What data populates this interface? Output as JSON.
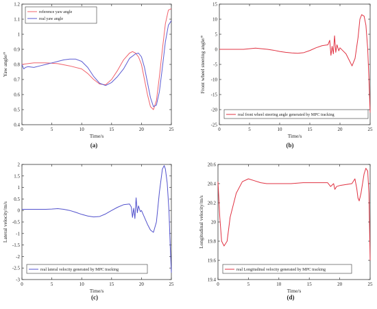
{
  "chart_data": [
    {
      "type": "line",
      "panel_label": "(a)",
      "xlabel": "Time/s",
      "ylabel": "Yaw angle/°",
      "xlim": [
        0,
        25
      ],
      "ylim": [
        0.4,
        1.2
      ],
      "xticks": [
        "0",
        "5",
        "10",
        "15",
        "20",
        "25"
      ],
      "yticks": [
        "0.4",
        "0.5",
        "0.6",
        "0.7",
        "0.8",
        "0.9",
        "1",
        "1.1",
        "1.2"
      ],
      "legend_position": "top-left",
      "series": [
        {
          "name": "reference yaw angle",
          "color": "#f0606a",
          "x": [
            0,
            2,
            4,
            6,
            8,
            10,
            11,
            12,
            13,
            14,
            15,
            16,
            17,
            18,
            18.5,
            19,
            19.5,
            20,
            20.5,
            21,
            21.5,
            22,
            22.5,
            23,
            23.5,
            24,
            24.5,
            25
          ],
          "y": [
            0.8,
            0.81,
            0.81,
            0.805,
            0.79,
            0.77,
            0.74,
            0.7,
            0.67,
            0.665,
            0.7,
            0.76,
            0.83,
            0.875,
            0.885,
            0.875,
            0.85,
            0.8,
            0.7,
            0.6,
            0.52,
            0.5,
            0.56,
            0.72,
            0.9,
            1.07,
            1.16,
            1.17
          ]
        },
        {
          "name": "real yaw angle",
          "color": "#5a5ad2",
          "x": [
            0,
            0.3,
            0.6,
            1,
            2,
            3,
            4,
            5,
            6,
            7,
            8,
            9,
            10,
            11,
            12,
            13,
            14,
            15,
            16,
            17,
            18,
            19,
            19.5,
            20,
            20.5,
            21,
            21.5,
            22,
            22.5,
            23,
            23.5,
            24,
            24.5,
            25
          ],
          "y": [
            0.8,
            0.77,
            0.78,
            0.785,
            0.78,
            0.79,
            0.8,
            0.81,
            0.82,
            0.83,
            0.835,
            0.835,
            0.82,
            0.78,
            0.72,
            0.675,
            0.66,
            0.68,
            0.72,
            0.77,
            0.84,
            0.87,
            0.875,
            0.85,
            0.78,
            0.68,
            0.58,
            0.52,
            0.53,
            0.62,
            0.78,
            0.95,
            1.06,
            1.09
          ]
        }
      ]
    },
    {
      "type": "line",
      "panel_label": "(b)",
      "xlabel": "Time/s",
      "ylabel": "Front wheel steering angle/°",
      "xlim": [
        0,
        25
      ],
      "ylim": [
        -25,
        15
      ],
      "xticks": [
        "0",
        "5",
        "10",
        "15",
        "20",
        "25"
      ],
      "yticks": [
        "-25",
        "-20",
        "-15",
        "-10",
        "-5",
        "0",
        "5",
        "10",
        "15"
      ],
      "legend_position": "bottom-left",
      "series": [
        {
          "name": "real front wheel steering angle generated by MPC tracking",
          "color": "#e03040",
          "x": [
            0,
            2,
            4,
            5,
            6,
            7,
            8,
            9,
            10,
            11,
            12,
            13,
            14,
            15,
            16,
            17,
            18,
            18.3,
            18.5,
            18.7,
            18.9,
            19.1,
            19.3,
            19.5,
            19.8,
            20,
            20.5,
            21,
            21.5,
            22,
            22.5,
            23,
            23.3,
            23.6,
            24,
            24.3,
            24.6,
            24.8,
            25
          ],
          "y": [
            0,
            0,
            0,
            0.2,
            0.4,
            0.2,
            0,
            -0.3,
            -0.7,
            -1,
            -1.2,
            -1.3,
            -1.1,
            -0.4,
            0.5,
            1.2,
            1.5,
            3,
            -2,
            1,
            -1.5,
            4.5,
            -1,
            1.5,
            -0.5,
            0.5,
            -0.5,
            -1.5,
            -3.5,
            -5.5,
            -3,
            4,
            10,
            11.5,
            11,
            8,
            0,
            -10,
            -21
          ]
        }
      ]
    },
    {
      "type": "line",
      "panel_label": "(c)",
      "xlabel": "Time/s",
      "ylabel": "Lateral velocity/m/s",
      "xlim": [
        0,
        25
      ],
      "ylim": [
        -3,
        2
      ],
      "xticks": [
        "0",
        "5",
        "10",
        "15",
        "20",
        "25"
      ],
      "yticks": [
        "-3",
        "-2.5",
        "-2",
        "-1.5",
        "-1",
        "-0.5",
        "0",
        "0.5",
        "1",
        "1.5",
        "2"
      ],
      "legend_position": "bottom-left",
      "series": [
        {
          "name": "real lateral velocity generated by MPC tracking",
          "color": "#5050cc",
          "x": [
            0,
            2,
            4,
            5,
            6,
            7,
            8,
            9,
            10,
            11,
            12,
            13,
            14,
            15,
            16,
            17,
            18,
            18.3,
            18.5,
            18.7,
            18.9,
            19.1,
            19.3,
            19.5,
            19.8,
            20,
            20.5,
            21,
            21.5,
            22,
            22.5,
            23,
            23.5,
            23.8,
            24,
            24.3,
            24.6,
            24.8,
            25
          ],
          "y": [
            0.05,
            0.05,
            0.05,
            0.06,
            0.08,
            0.05,
            0,
            -0.08,
            -0.17,
            -0.24,
            -0.28,
            -0.26,
            -0.15,
            0,
            0.14,
            0.25,
            0.28,
            0.15,
            -0.3,
            0.1,
            -0.35,
            0.55,
            -0.1,
            0.2,
            -0.05,
            0,
            -0.3,
            -0.6,
            -0.85,
            -0.95,
            -0.5,
            0.8,
            1.8,
            1.95,
            1.8,
            1.2,
            0,
            -1.5,
            -2.7
          ]
        }
      ]
    },
    {
      "type": "line",
      "panel_label": "(d)",
      "xlabel": "Time/s",
      "ylabel": "Longitudinal velocity/m/s",
      "xlim": [
        0,
        25
      ],
      "ylim": [
        19.4,
        20.6
      ],
      "xticks": [
        "0",
        "5",
        "10",
        "15",
        "20",
        "25"
      ],
      "yticks": [
        "19.4",
        "19.6",
        "19.8",
        "20",
        "20.2",
        "20.4",
        "20.6"
      ],
      "legend_position": "bottom-left",
      "series": [
        {
          "name": "real Longitudinal velocity generated by MPC tracking",
          "color": "#e03040",
          "x": [
            0,
            0.3,
            0.6,
            1,
            1.5,
            2,
            3,
            4,
            5,
            6,
            7,
            8,
            9,
            10,
            12,
            14,
            16,
            18,
            18.5,
            19,
            19.2,
            19.5,
            20,
            21,
            22,
            22.5,
            22.8,
            23,
            23.2,
            23.5,
            24,
            24.3,
            24.6,
            24.8,
            25
          ],
          "y": [
            20.42,
            20.05,
            19.8,
            19.75,
            19.8,
            20.05,
            20.3,
            20.42,
            20.45,
            20.43,
            20.41,
            20.4,
            20.4,
            20.4,
            20.4,
            20.41,
            20.41,
            20.41,
            20.37,
            20.4,
            20.34,
            20.37,
            20.38,
            20.39,
            20.4,
            20.45,
            20.35,
            20.25,
            20.22,
            20.3,
            20.5,
            20.56,
            20.53,
            20.3,
            19.6
          ]
        }
      ]
    }
  ]
}
